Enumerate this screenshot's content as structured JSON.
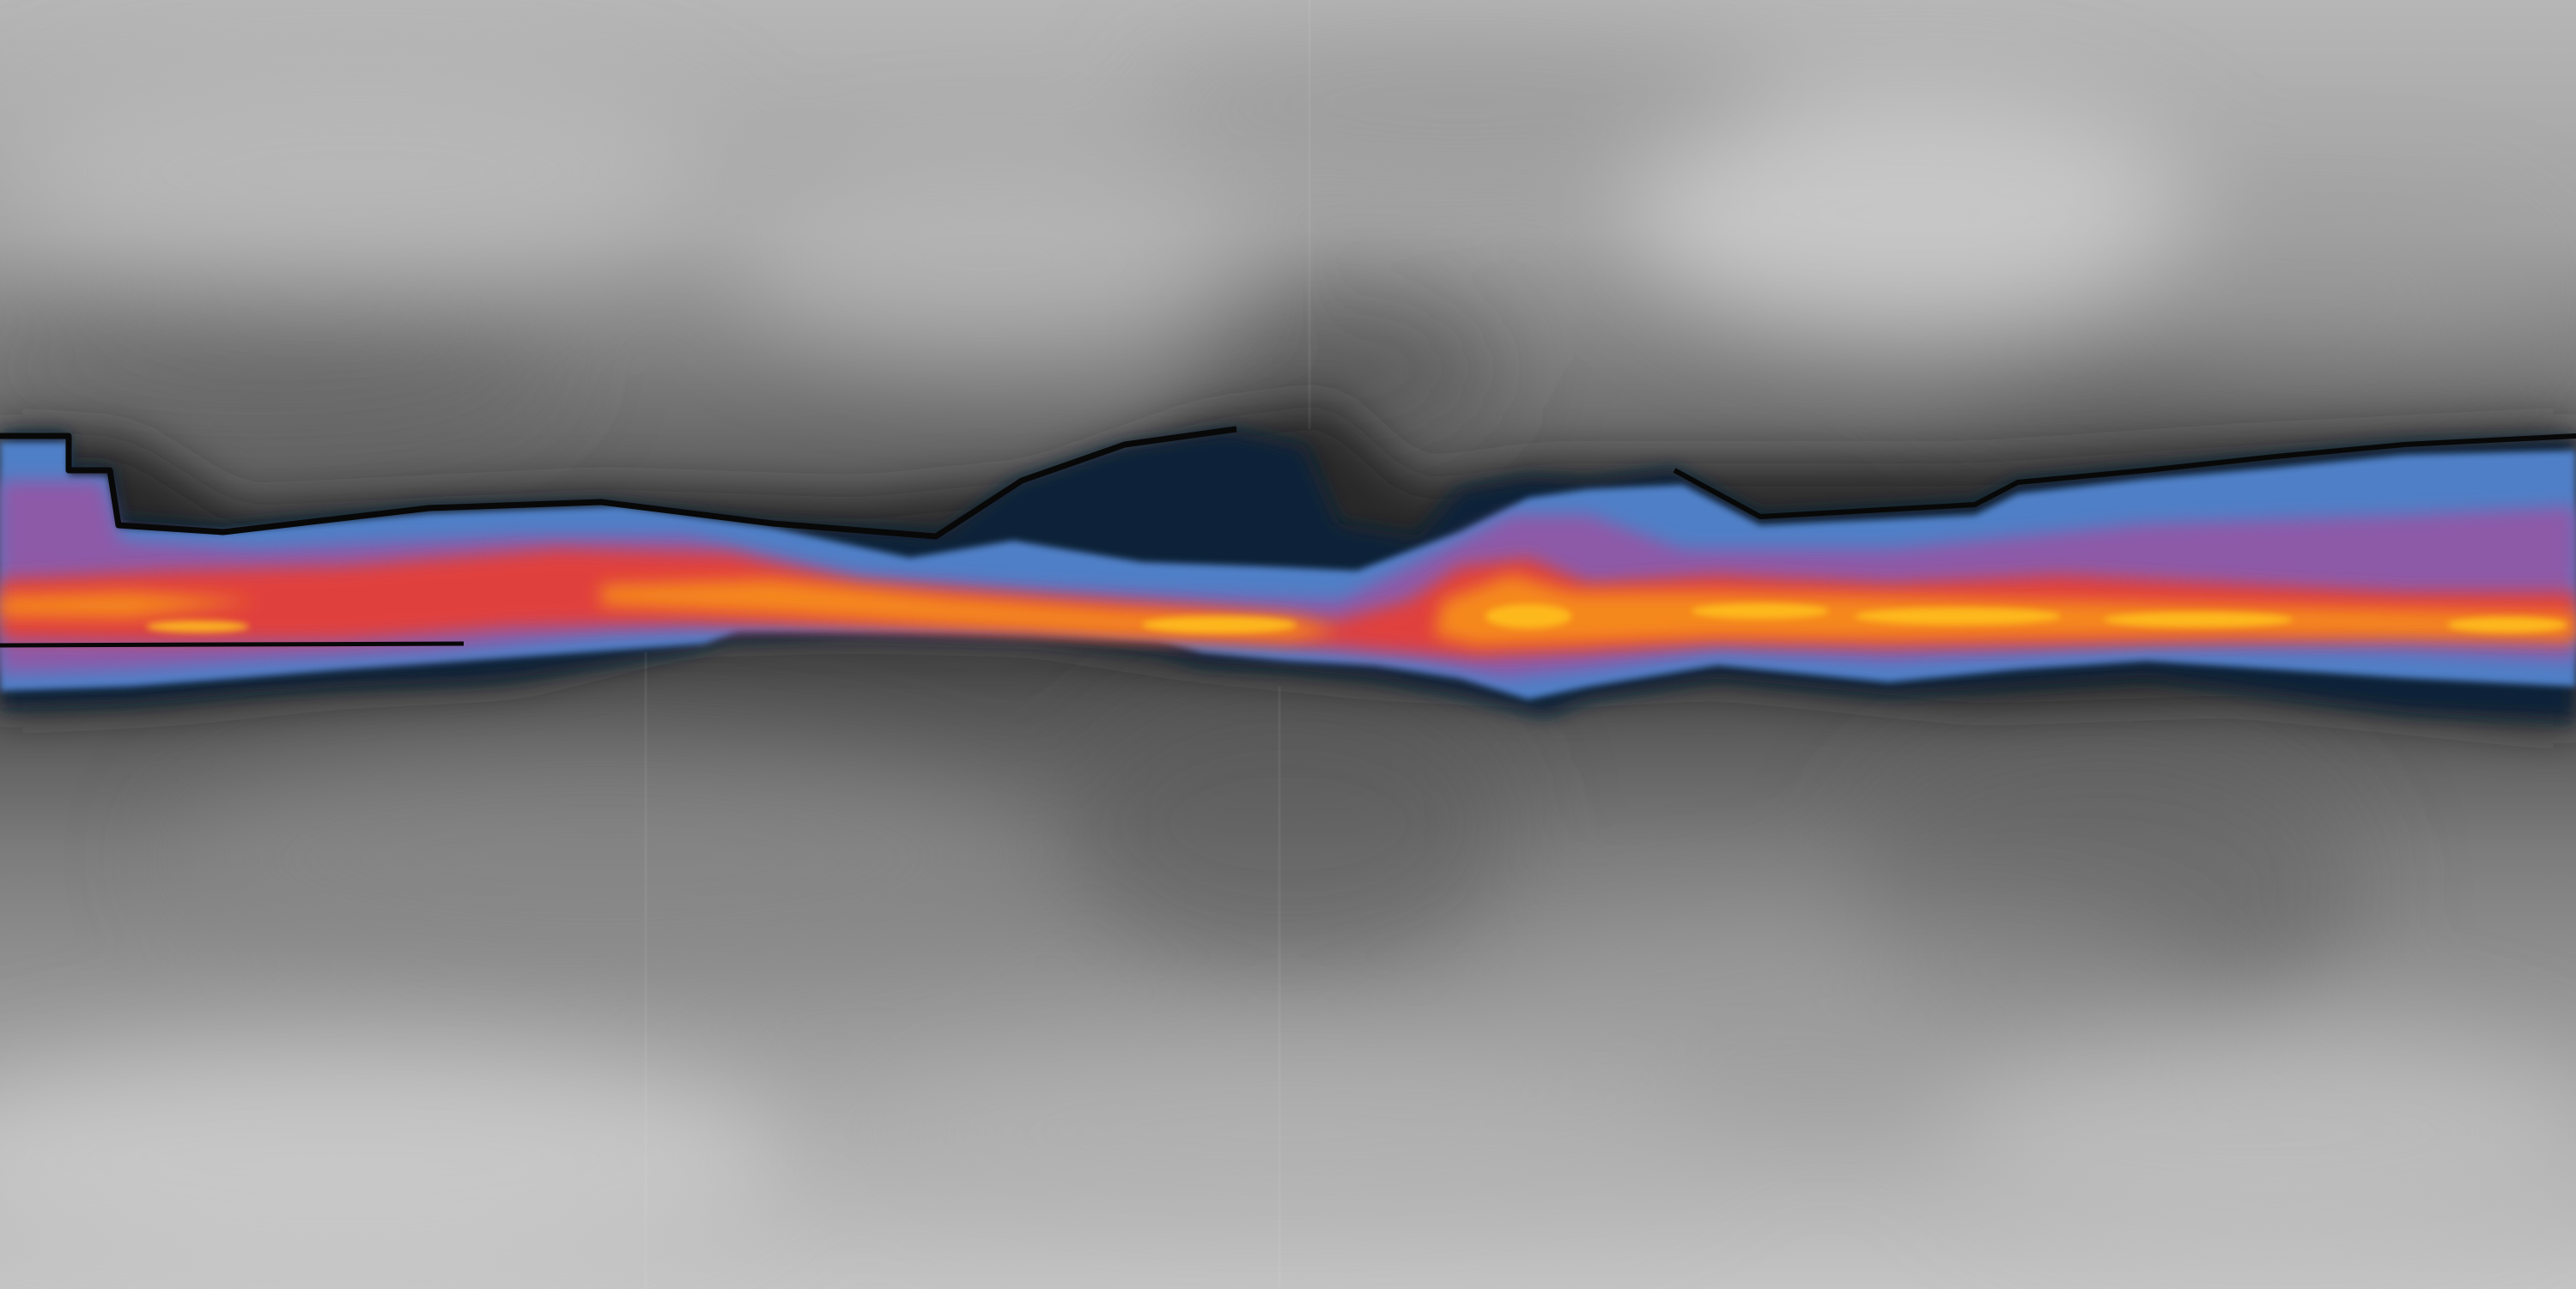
{
  "map": {
    "projection": "equirectangular",
    "background_style": "grayscale-field",
    "highlight_colormap": [
      "#0c1f33",
      "#2e5f94",
      "#4f7fc6",
      "#8d5aa8",
      "#d24a52",
      "#e8392e",
      "#f5881c",
      "#ffc11a"
    ],
    "gray_tones": [
      "#3a3a3a",
      "#6e6e6e",
      "#9a9a9a",
      "#c8c8c8"
    ],
    "labels": []
  }
}
